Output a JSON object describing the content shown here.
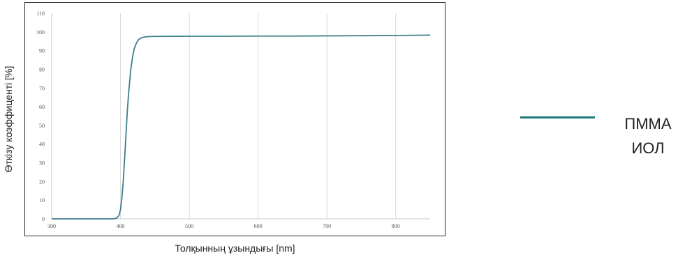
{
  "chart_data": {
    "type": "line",
    "title": "",
    "xlabel": "Толқынның ұзындығы [nm]",
    "ylabel": "Өткізу коэффиценті [%]",
    "xlim": [
      300,
      850
    ],
    "ylim": [
      0,
      110
    ],
    "x_ticks": [
      300,
      400,
      500,
      600,
      700,
      800
    ],
    "y_ticks": [
      0,
      10,
      20,
      30,
      40,
      50,
      60,
      70,
      80,
      90,
      100,
      110
    ],
    "grid": "vertical",
    "legend_position": "right",
    "series": [
      {
        "name": "ПММА ИОЛ",
        "color": "#3d7f8c",
        "x": [
          300,
          380,
          390,
          395,
          398,
          400,
          402,
          404,
          406,
          408,
          410,
          412,
          415,
          418,
          420,
          423,
          426,
          430,
          435,
          440,
          450,
          500,
          550,
          600,
          650,
          700,
          750,
          800,
          850
        ],
        "y": [
          0,
          0,
          0,
          0.5,
          2,
          5,
          11,
          20,
          32,
          45,
          58,
          68,
          80,
          87.5,
          91,
          94,
          95.8,
          96.8,
          97.3,
          97.5,
          97.6,
          97.7,
          97.7,
          97.8,
          97.8,
          97.9,
          98.0,
          98.1,
          98.3
        ]
      }
    ]
  },
  "legend": {
    "line1": "ПММА",
    "line2": "ИОЛ",
    "color": "#1c7a7a"
  }
}
